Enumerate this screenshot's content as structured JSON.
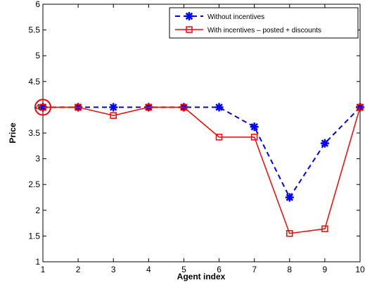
{
  "chart_data": {
    "type": "line",
    "title": "",
    "xlabel": "Agent index",
    "ylabel": "Price",
    "xlim": [
      1,
      10
    ],
    "ylim": [
      1,
      6
    ],
    "xticks": [
      1,
      2,
      3,
      4,
      5,
      6,
      7,
      8,
      9,
      10
    ],
    "yticks": [
      1,
      1.5,
      2,
      2.5,
      3,
      3.5,
      4,
      4.5,
      5,
      5.5,
      6
    ],
    "grid": false,
    "legend_position": "top-right",
    "x": [
      1,
      2,
      3,
      4,
      5,
      6,
      7,
      8,
      9,
      10
    ],
    "series": [
      {
        "name": "Without incentives",
        "values": [
          4.0,
          4.0,
          4.0,
          4.0,
          4.0,
          4.0,
          3.62,
          2.25,
          3.3,
          4.0
        ],
        "color": "#0000ff",
        "line_style": "dashed",
        "marker": "asterisk"
      },
      {
        "name": "With incentives – posted + discounts",
        "values": [
          4.0,
          4.0,
          3.84,
          4.0,
          4.0,
          3.42,
          3.42,
          1.55,
          1.64,
          4.0
        ],
        "color": "#ff0000",
        "line_style": "solid",
        "marker": "square"
      }
    ],
    "highlight": {
      "x": 1,
      "y": 4.0,
      "color": "#ff0000",
      "shape": "circle"
    }
  }
}
